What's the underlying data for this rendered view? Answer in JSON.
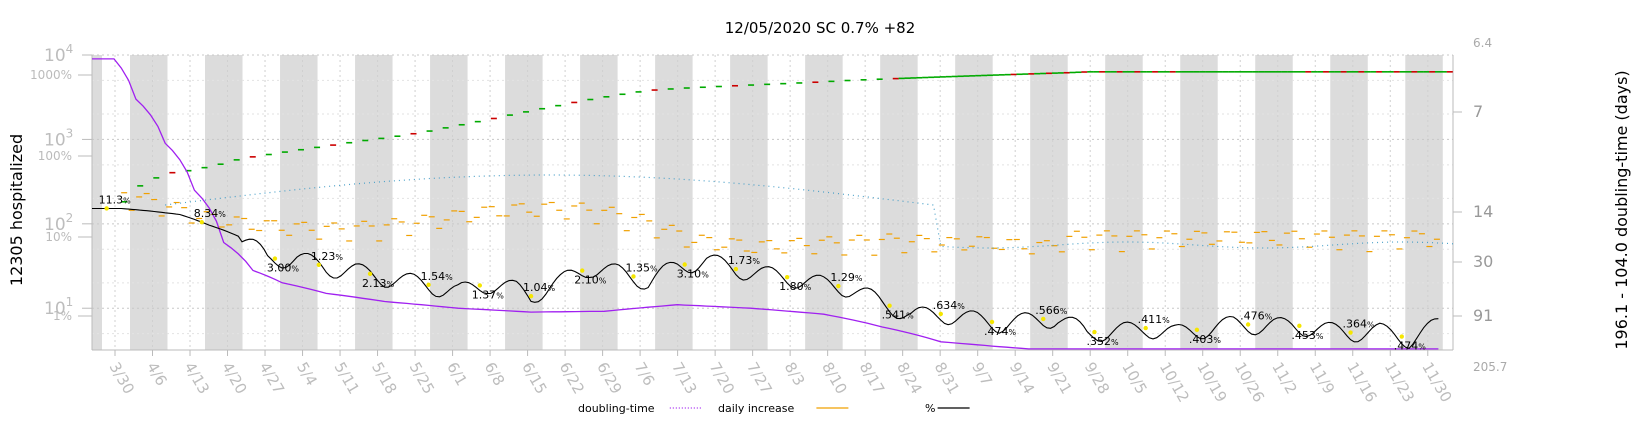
{
  "chart_data": {
    "type": "line",
    "title": "12/05/2020 SC 0.7% +82",
    "ylabel_left": "12305 hospitalized",
    "ylabel_right": "196.1 - 104.0 doubling-time (days)",
    "y_left_ticks": [
      {
        "base": "10",
        "exp": "4"
      },
      {
        "base": "10",
        "exp": "3"
      },
      {
        "base": "10",
        "exp": "2"
      },
      {
        "base": "10",
        "exp": "1"
      }
    ],
    "pct_ticks": [
      "1000%",
      "100%",
      "10%",
      "1%"
    ],
    "y_right_ticks": [
      "6.4",
      "7",
      "14",
      "30",
      "91",
      "205.7"
    ],
    "x_ticks": [
      "3/30",
      "4/6",
      "4/13",
      "4/20",
      "4/27",
      "5/4",
      "5/11",
      "5/18",
      "5/25",
      "6/1",
      "6/8",
      "6/15",
      "6/22",
      "6/29",
      "7/6",
      "7/13",
      "7/20",
      "7/27",
      "8/3",
      "8/10",
      "8/17",
      "8/24",
      "8/31",
      "9/7",
      "9/14",
      "9/21",
      "9/28",
      "10/5",
      "10/12",
      "10/19",
      "10/26",
      "11/2",
      "11/9",
      "11/16",
      "11/23",
      "11/30"
    ],
    "legend": [
      {
        "label": "doubling-time",
        "color": "#a020f0",
        "style": "dotted"
      },
      {
        "label": "daily increase",
        "color": "#f0a000",
        "style": "solid"
      },
      {
        "label": "%",
        "color": "#000000",
        "style": "solid"
      }
    ],
    "percent_annotations": [
      {
        "date_index": 2,
        "main": "11.3",
        "unit": "%"
      },
      {
        "date_index": 15,
        "main": "8.34",
        "unit": "%"
      },
      {
        "date_index": 25,
        "main": "3.00",
        "unit": "%"
      },
      {
        "date_index": 31,
        "main": "1.23",
        "unit": "%"
      },
      {
        "date_index": 38,
        "main": "2.13",
        "unit": "%"
      },
      {
        "date_index": 46,
        "main": "1.54",
        "unit": "%"
      },
      {
        "date_index": 53,
        "main": "1.37",
        "unit": "%"
      },
      {
        "date_index": 60,
        "main": "1.04",
        "unit": "%"
      },
      {
        "date_index": 67,
        "main": "2.10",
        "unit": "%"
      },
      {
        "date_index": 74,
        "main": "1.35",
        "unit": "%"
      },
      {
        "date_index": 81,
        "main": "3.10",
        "unit": "%"
      },
      {
        "date_index": 88,
        "main": "1.73",
        "unit": "%"
      },
      {
        "date_index": 95,
        "main": "1.80",
        "unit": "%"
      },
      {
        "date_index": 102,
        "main": "1.29",
        "unit": "%"
      },
      {
        "date_index": 109,
        "main": ".541",
        "unit": "%"
      },
      {
        "date_index": 116,
        "main": ".634",
        "unit": "%"
      },
      {
        "date_index": 123,
        "main": ".474",
        "unit": "%"
      },
      {
        "date_index": 130,
        "main": ".566",
        "unit": "%"
      },
      {
        "date_index": 137,
        "main": ".352",
        "unit": "%"
      },
      {
        "date_index": 144,
        "main": ".411",
        "unit": "%"
      },
      {
        "date_index": 151,
        "main": ".403",
        "unit": "%"
      },
      {
        "date_index": 158,
        "main": ".476",
        "unit": "%"
      },
      {
        "date_index": 165,
        "main": ".453",
        "unit": "%"
      },
      {
        "date_index": 172,
        "main": ".364",
        "unit": "%"
      },
      {
        "date_index": 179,
        "main": ".474",
        "unit": "%"
      }
    ],
    "first_date": "3/27",
    "num_days": 254,
    "series_percent": {
      "name": "%",
      "points": [
        [
          0,
          13.5
        ],
        [
          4,
          13.5
        ],
        [
          8,
          12.5
        ],
        [
          12,
          11.3
        ],
        [
          16,
          8.3
        ],
        [
          20,
          6.0
        ],
        [
          24,
          3.1
        ],
        [
          28,
          3.2
        ],
        [
          32,
          2.4
        ],
        [
          36,
          2.2
        ],
        [
          40,
          1.8
        ],
        [
          44,
          1.6
        ],
        [
          48,
          1.3
        ],
        [
          50,
          1.2
        ],
        [
          54,
          1.5
        ],
        [
          58,
          1.3
        ],
        [
          60,
          1.04
        ],
        [
          64,
          1.6
        ],
        [
          68,
          2.4
        ],
        [
          72,
          2.1
        ],
        [
          76,
          1.6
        ],
        [
          80,
          2.5
        ],
        [
          84,
          3.0
        ],
        [
          88,
          2.3
        ],
        [
          92,
          2.0
        ],
        [
          96,
          1.75
        ],
        [
          100,
          1.5
        ],
        [
          104,
          1.3
        ],
        [
          108,
          0.85
        ],
        [
          112,
          0.6
        ],
        [
          116,
          0.62
        ],
        [
          120,
          0.55
        ],
        [
          124,
          0.47
        ],
        [
          128,
          0.52
        ],
        [
          132,
          0.55
        ],
        [
          136,
          0.36
        ],
        [
          140,
          0.38
        ],
        [
          144,
          0.41
        ],
        [
          148,
          0.36
        ],
        [
          152,
          0.4
        ],
        [
          156,
          0.47
        ],
        [
          160,
          0.44
        ],
        [
          164,
          0.45
        ],
        [
          168,
          0.4
        ],
        [
          172,
          0.36
        ],
        [
          176,
          0.38
        ],
        [
          180,
          0.3
        ],
        [
          184,
          0.45
        ]
      ],
      "color": "#000000"
    },
    "series_hospitalized": {
      "name": "hospitalized",
      "points": [
        [
          1,
          22
        ],
        [
          9,
          370
        ],
        [
          14,
          520
        ],
        [
          18,
          560
        ],
        [
          23,
          640
        ],
        [
          28,
          780
        ],
        [
          33,
          870
        ],
        [
          38,
          970
        ],
        [
          44,
          1100
        ],
        [
          50,
          1250
        ],
        [
          56,
          1400
        ],
        [
          62,
          1600
        ],
        [
          68,
          1900
        ],
        [
          74,
          2250
        ],
        [
          80,
          2700
        ],
        [
          86,
          3200
        ],
        [
          92,
          3800
        ],
        [
          98,
          4400
        ],
        [
          104,
          5000
        ],
        [
          110,
          5300
        ],
        [
          118,
          5600
        ],
        [
          126,
          5900
        ],
        [
          134,
          6200
        ],
        [
          142,
          6600
        ],
        [
          150,
          6900
        ],
        [
          158,
          7200
        ],
        [
          166,
          7500
        ],
        [
          174,
          7800
        ],
        [
          182,
          8100
        ],
        [
          186,
          8300
        ]
      ],
      "color_up": "#00aa00",
      "color_down": "#cc0000"
    },
    "series_daily_increase": {
      "name": "daily increase",
      "points": [
        [
          5,
          22
        ],
        [
          10,
          18
        ],
        [
          14,
          15
        ],
        [
          20,
          11
        ],
        [
          28,
          9
        ],
        [
          36,
          8
        ],
        [
          44,
          7.5
        ],
        [
          52,
          8
        ],
        [
          60,
          9
        ],
        [
          68,
          11
        ],
        [
          76,
          13
        ],
        [
          84,
          14
        ],
        [
          92,
          13.5
        ],
        [
          100,
          11
        ],
        [
          106,
          8
        ],
        [
          112,
          5.5
        ],
        [
          118,
          5
        ],
        [
          124,
          4.5
        ],
        [
          130,
          4.8
        ],
        [
          136,
          5
        ],
        [
          142,
          5.2
        ],
        [
          148,
          5.5
        ],
        [
          154,
          5.3
        ],
        [
          160,
          5
        ],
        [
          166,
          5.2
        ],
        [
          172,
          4.8
        ],
        [
          178,
          4.5
        ],
        [
          184,
          6
        ]
      ],
      "color": "#f0a000"
    },
    "series_doubling_smooth": {
      "name": "doubling-time",
      "points": [
        [
          0,
          9000
        ],
        [
          3,
          9000
        ],
        [
          6,
          3000
        ],
        [
          10,
          900
        ],
        [
          14,
          250
        ],
        [
          18,
          60
        ],
        [
          22,
          28
        ],
        [
          26,
          20
        ],
        [
          32,
          15
        ],
        [
          40,
          12
        ],
        [
          50,
          10
        ],
        [
          60,
          9
        ],
        [
          70,
          9.2
        ],
        [
          80,
          11
        ],
        [
          90,
          10
        ],
        [
          100,
          8.5
        ],
        [
          108,
          6
        ],
        [
          116,
          4
        ],
        [
          124,
          3.5
        ],
        [
          134,
          3
        ],
        [
          144,
          2.9
        ],
        [
          154,
          2.8
        ],
        [
          164,
          2.6
        ],
        [
          174,
          2.5
        ],
        [
          180,
          2.4
        ],
        [
          184,
          2.6
        ]
      ],
      "color": "#a020f0"
    }
  }
}
